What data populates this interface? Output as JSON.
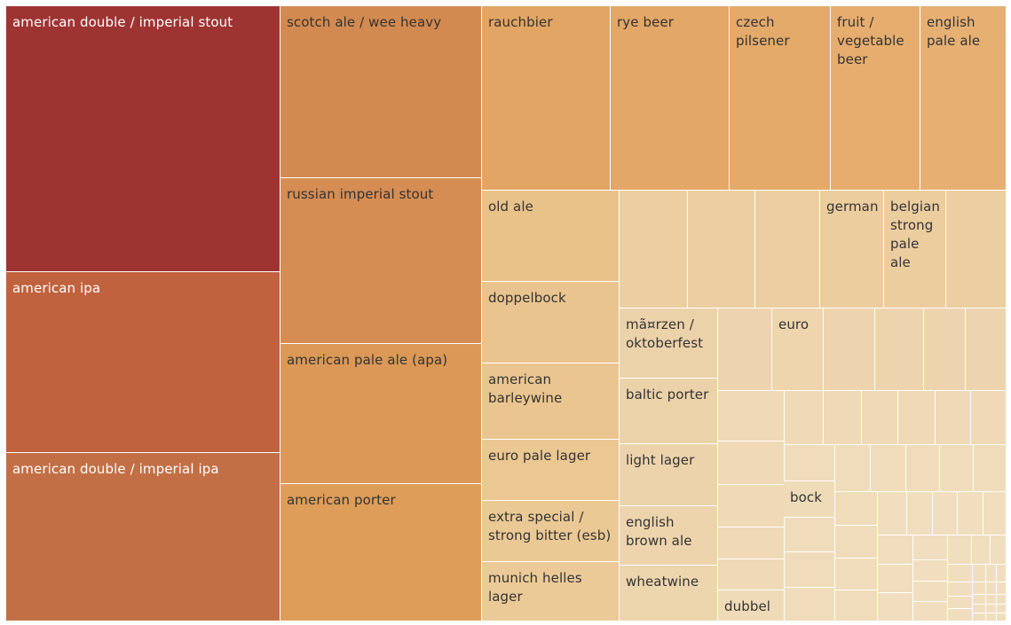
{
  "chart_data": {
    "type": "treemap",
    "cells": [
      {
        "label": "american double / imperial stout",
        "color": "#9e3432",
        "text_color": "#ffffff"
      },
      {
        "label": "american ipa",
        "color": "#c0623d",
        "text_color": "#ffffff"
      },
      {
        "label": "american double / imperial ipa",
        "color": "#c36f45",
        "text_color": "#ffffff"
      },
      {
        "label": "scotch ale / wee heavy",
        "color": "#d38a50",
        "text_color": "#333333"
      },
      {
        "label": "russian imperial stout",
        "color": "#d58d53",
        "text_color": "#333333"
      },
      {
        "label": "american pale ale (apa)",
        "color": "#db9856",
        "text_color": "#333333"
      },
      {
        "label": "american porter",
        "color": "#de9d59",
        "text_color": "#333333"
      },
      {
        "label": "rauchbier",
        "color": "#e2a564",
        "text_color": "#333333"
      },
      {
        "label": "rye beer",
        "color": "#e3a767",
        "text_color": "#333333"
      },
      {
        "label": "czech pilsener",
        "color": "#e4aa6a",
        "text_color": "#333333"
      },
      {
        "label": "fruit / vegetable beer",
        "color": "#e6ad6f",
        "text_color": "#333333"
      },
      {
        "label": "english pale ale",
        "color": "#e7b073",
        "text_color": "#333333"
      },
      {
        "label": "old ale",
        "color": "#e9c28a",
        "text_color": "#333333"
      },
      {
        "label": "doppelbock",
        "color": "#eac48e",
        "text_color": "#333333"
      },
      {
        "label": "american barleywine",
        "color": "#eac58f",
        "text_color": "#333333"
      },
      {
        "label": "euro pale lager",
        "color": "#ebc792",
        "text_color": "#333333"
      },
      {
        "label": "extra special / strong bitter (esb)",
        "color": "#ebc994",
        "text_color": "#333333"
      },
      {
        "label": "munich helles lager",
        "color": "#ecca97",
        "text_color": "#333333"
      },
      {
        "label": "german",
        "color": "#eccd9e",
        "text_color": "#333333"
      },
      {
        "label": "belgian strong pale ale",
        "color": "#eccd9e",
        "text_color": "#333333"
      },
      {
        "label": "mã¤rzen / oktoberfest",
        "color": "#ecd2a9",
        "text_color": "#333333"
      },
      {
        "label": "euro",
        "color": "#eed5ad",
        "text_color": "#333333"
      },
      {
        "label": "baltic porter",
        "color": "#ecd2a9",
        "text_color": "#333333"
      },
      {
        "label": "light lager",
        "color": "#edd3ab",
        "text_color": "#333333"
      },
      {
        "label": "english brown ale",
        "color": "#edd4ac",
        "text_color": "#333333"
      },
      {
        "label": "wheatwine",
        "color": "#edd5ae",
        "text_color": "#333333"
      },
      {
        "label": "bock",
        "color": "#efdbb8",
        "text_color": "#333333"
      },
      {
        "label": "dubbel",
        "color": "#efdbb8",
        "text_color": "#333333"
      }
    ],
    "unlabeled_colors": [
      "#ecceA0",
      "#edd4ae",
      "#efd9b6",
      "#f0dcba",
      "#f1debe"
    ]
  }
}
